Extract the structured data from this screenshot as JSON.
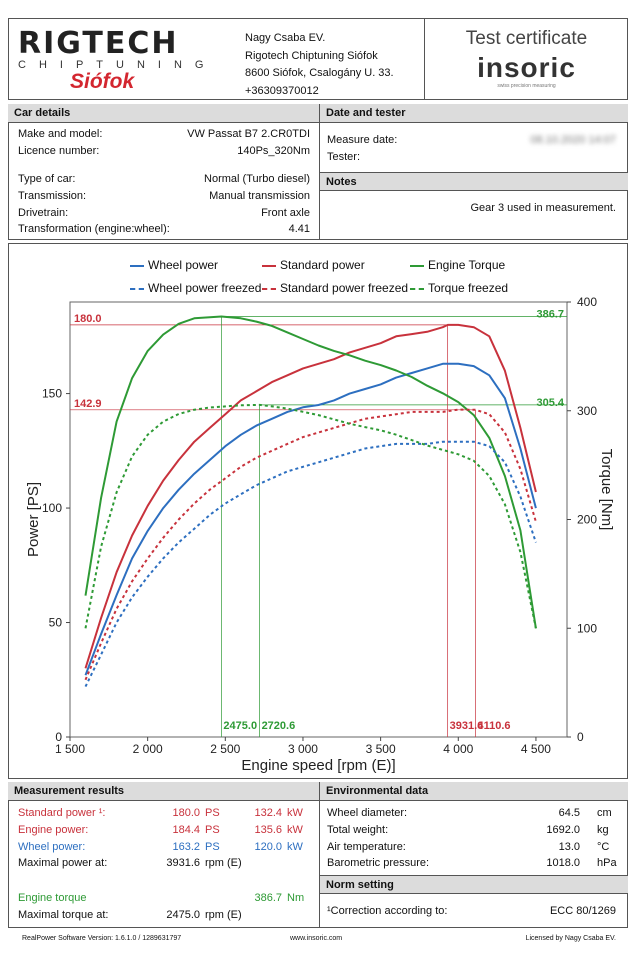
{
  "header": {
    "logo_main": "RIGTECH",
    "logo_sub": "CHIPTUNING",
    "logo_city": "Siófok",
    "company_lines": [
      "Nagy Csaba EV.",
      "Rigotech Chiptuning Siófok",
      "8600 Siófok, Csalogány U. 33.",
      "+36309370012"
    ],
    "certificate_title": "Test certificate",
    "brand": "insoric",
    "brand_tagline": "swiss precision measuring"
  },
  "car_details": {
    "title": "Car details",
    "rows": [
      {
        "label": "Make and model:",
        "value": "VW Passat B7 2.CR0TDI"
      },
      {
        "label": "Licence number:",
        "value": "140Ps_320Nm"
      },
      {
        "label": "Type of car:",
        "value": "Normal (Turbo diesel)"
      },
      {
        "label": "Transmission:",
        "value": "Manual transmission"
      },
      {
        "label": "Drivetrain:",
        "value": "Front axle"
      },
      {
        "label": "Transformation (engine:wheel):",
        "value": "4.41"
      }
    ]
  },
  "date_tester": {
    "title": "Date and tester",
    "measure_date_label": "Measure date:",
    "measure_date_value": "08.10.2020 14:07",
    "tester_label": "Tester:"
  },
  "notes": {
    "title": "Notes",
    "text": "Gear 3 used in measurement."
  },
  "legend": [
    {
      "label": "Wheel power",
      "color": "#2d6fc0",
      "dashed": false
    },
    {
      "label": "Standard power",
      "color": "#c8323c",
      "dashed": false
    },
    {
      "label": "Engine Torque",
      "color": "#2e9a35",
      "dashed": false
    },
    {
      "label": "Wheel power freezed",
      "color": "#2d6fc0",
      "dashed": true
    },
    {
      "label": "Standard power freezed",
      "color": "#c8323c",
      "dashed": true
    },
    {
      "label": "Torque freezed",
      "color": "#2e9a35",
      "dashed": true
    }
  ],
  "chart_data": {
    "type": "line",
    "xlabel": "Engine speed [rpm (E)]",
    "ylabel_left": "Power [PS]",
    "ylabel_right": "Torque [Nm]",
    "xlim": [
      1500,
      4700
    ],
    "ylim_left": [
      0,
      190
    ],
    "ylim_right": [
      0,
      400
    ],
    "x_ticks": [
      1500,
      2000,
      2500,
      3000,
      3500,
      4000,
      4500
    ],
    "x_tick_labels": [
      "1 500",
      "2 000",
      "2 500",
      "3 000",
      "3 500",
      "4 000",
      "4 500"
    ],
    "y_left_ticks": [
      0,
      50,
      100,
      150
    ],
    "y_right_ticks": [
      0,
      100,
      200,
      300,
      400
    ],
    "grid": false,
    "series": [
      {
        "name": "Wheel power",
        "axis": "left",
        "color": "#2d6fc0",
        "dashed": false,
        "x": [
          1600,
          1700,
          1800,
          1900,
          2000,
          2100,
          2200,
          2300,
          2400,
          2500,
          2600,
          2700,
          2800,
          2900,
          3000,
          3100,
          3200,
          3300,
          3400,
          3500,
          3600,
          3700,
          3800,
          3900,
          3950,
          4000,
          4100,
          4200,
          4300,
          4400,
          4500
        ],
        "y": [
          27,
          45,
          62,
          78,
          90,
          100,
          108,
          115,
          121,
          127,
          132,
          136,
          139,
          142,
          144,
          145,
          147,
          150,
          152,
          154,
          157,
          159,
          161,
          163,
          163,
          163,
          162,
          158,
          148,
          126,
          100
        ]
      },
      {
        "name": "Standard power",
        "axis": "left",
        "color": "#c8323c",
        "dashed": false,
        "x": [
          1600,
          1700,
          1800,
          1900,
          2000,
          2100,
          2200,
          2300,
          2400,
          2500,
          2600,
          2700,
          2800,
          2900,
          3000,
          3100,
          3200,
          3300,
          3400,
          3500,
          3600,
          3700,
          3800,
          3900,
          3931.6,
          4000,
          4100,
          4200,
          4300,
          4400,
          4500
        ],
        "y": [
          30,
          52,
          72,
          88,
          101,
          112,
          121,
          129,
          135,
          141,
          147,
          151,
          155,
          158,
          161,
          163,
          165,
          168,
          170,
          172,
          175,
          176,
          177,
          179,
          180,
          180,
          179,
          175,
          160,
          135,
          107
        ]
      },
      {
        "name": "Engine Torque",
        "axis": "right",
        "color": "#2e9a35",
        "dashed": false,
        "x": [
          1600,
          1700,
          1800,
          1900,
          2000,
          2100,
          2200,
          2300,
          2400,
          2475,
          2600,
          2700,
          2800,
          2900,
          3000,
          3100,
          3200,
          3300,
          3400,
          3500,
          3600,
          3700,
          3800,
          3900,
          4000,
          4100,
          4200,
          4300,
          4400,
          4500
        ],
        "y": [
          130,
          220,
          290,
          330,
          355,
          370,
          380,
          385,
          386,
          386.7,
          385,
          382,
          378,
          372,
          366,
          360,
          355,
          351,
          346,
          342,
          337,
          331,
          323,
          316,
          308,
          296,
          275,
          240,
          190,
          100
        ]
      },
      {
        "name": "Wheel power freezed",
        "axis": "left",
        "color": "#2d6fc0",
        "dashed": true,
        "x": [
          1600,
          1700,
          1800,
          1900,
          2000,
          2100,
          2200,
          2300,
          2400,
          2500,
          2600,
          2700,
          2800,
          2900,
          3000,
          3100,
          3200,
          3300,
          3400,
          3500,
          3600,
          3700,
          3800,
          3900,
          4000,
          4100,
          4200,
          4300,
          4400,
          4500
        ],
        "y": [
          22,
          36,
          50,
          61,
          70,
          78,
          85,
          91,
          97,
          102,
          106,
          110,
          113,
          116,
          118,
          120,
          122,
          124,
          126,
          127,
          128,
          128,
          128,
          129,
          129,
          129,
          127,
          120,
          105,
          85
        ]
      },
      {
        "name": "Standard power freezed",
        "axis": "left",
        "color": "#c8323c",
        "dashed": true,
        "x": [
          1600,
          1700,
          1800,
          1900,
          2000,
          2100,
          2200,
          2300,
          2400,
          2500,
          2600,
          2700,
          2800,
          2900,
          3000,
          3100,
          3200,
          3300,
          3400,
          3500,
          3600,
          3700,
          3800,
          3900,
          4000,
          4110.6,
          4200,
          4300,
          4400,
          4500
        ],
        "y": [
          25,
          41,
          56,
          68,
          78,
          87,
          95,
          102,
          108,
          113,
          118,
          122,
          125,
          128,
          131,
          133,
          135,
          137,
          139,
          140,
          141,
          142,
          142,
          142,
          143,
          142.9,
          141,
          133,
          117,
          94
        ]
      },
      {
        "name": "Torque freezed",
        "axis": "right",
        "color": "#2e9a35",
        "dashed": true,
        "x": [
          1600,
          1700,
          1800,
          1900,
          2000,
          2100,
          2200,
          2300,
          2400,
          2500,
          2600,
          2720.6,
          2800,
          2900,
          3000,
          3100,
          3200,
          3300,
          3400,
          3500,
          3600,
          3700,
          3800,
          3900,
          4000,
          4100,
          4200,
          4300,
          4400,
          4500
        ],
        "y": [
          100,
          175,
          225,
          258,
          278,
          290,
          297,
          301,
          303,
          304,
          305,
          305.4,
          304,
          302,
          299,
          296,
          292,
          288,
          285,
          282,
          278,
          273,
          268,
          264,
          260,
          254,
          240,
          214,
          170,
          100
        ]
      }
    ],
    "markers": {
      "max_standard_power_label": "180.0",
      "max_standard_power_freezed_label": "142.9",
      "max_torque_label": "386.7",
      "max_torque_freezed_label": "305.4",
      "rpm_torque_label": "2475.0",
      "rpm_torque_freezed_label": "2720.6",
      "rpm_power_label": "3931.6",
      "rpm_power_freezed_label": "4110.6",
      "rpm_torque": 2475.0,
      "rpm_torque_freezed": 2720.6,
      "rpm_power": 3931.6,
      "rpm_power_freezed": 4110.6,
      "max_power": 180.0,
      "max_power_freezed": 142.9,
      "max_torque": 386.7,
      "max_torque_freezed": 305.4
    }
  },
  "measurement_results": {
    "title": "Measurement results",
    "standard_power": {
      "label": "Standard power ¹:",
      "ps": "180.0",
      "ps_unit": "PS",
      "kw": "132.4",
      "kw_unit": "kW"
    },
    "engine_power": {
      "label": "Engine power:",
      "ps": "184.4",
      "ps_unit": "PS",
      "kw": "135.6",
      "kw_unit": "kW"
    },
    "wheel_power": {
      "label": "Wheel power:",
      "ps": "163.2",
      "ps_unit": "PS",
      "kw": "120.0",
      "kw_unit": "kW"
    },
    "max_power_at": {
      "label": "Maximal power at:",
      "value": "3931.6",
      "unit": "rpm (E)"
    },
    "engine_torque": {
      "label": "Engine torque",
      "value": "386.7",
      "unit": "Nm"
    },
    "max_torque_at": {
      "label": "Maximal torque at:",
      "value": "2475.0",
      "unit": "rpm (E)"
    }
  },
  "environmental": {
    "title": "Environmental data",
    "rows": [
      {
        "label": "Wheel diameter:",
        "value": "64.5",
        "unit": "cm"
      },
      {
        "label": "Total weight:",
        "value": "1692.0",
        "unit": "kg"
      },
      {
        "label": "Air temperature:",
        "value": "13.0",
        "unit": "°C"
      },
      {
        "label": "Barometric pressure:",
        "value": "1018.0",
        "unit": "hPa"
      }
    ]
  },
  "norm": {
    "title": "Norm setting",
    "label": "¹Correction according to:",
    "value": "ECC 80/1269"
  },
  "footer": {
    "left": "RealPower Software Version: 1.6.1.0 / 1289631797",
    "center": "www.insoric.com",
    "right": "Licensed by Nagy Csaba EV."
  }
}
